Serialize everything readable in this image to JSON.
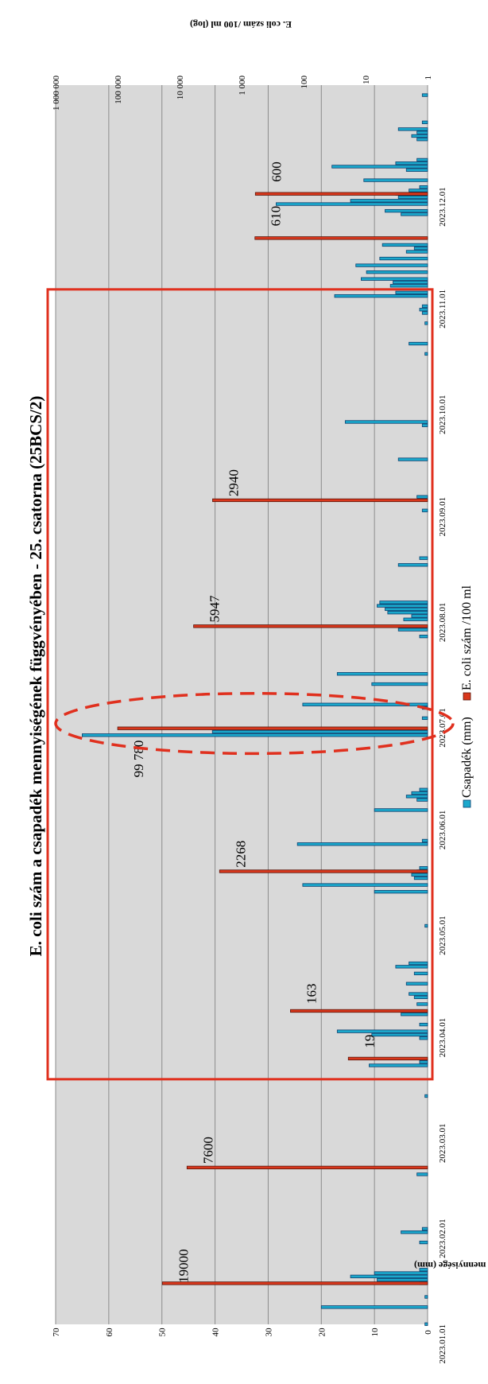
{
  "chart_data": {
    "type": "bar",
    "title": "E. coli szám a csapadék mennyiségének függvényében - 25. csatorna (25BCS/2)",
    "left_axis": {
      "label": "Csapadék mennyisége (mm)",
      "ticks": [
        "0",
        "10",
        "20",
        "30",
        "40",
        "50",
        "60",
        "70"
      ],
      "range": [
        0,
        70
      ]
    },
    "right_axis": {
      "label": "E. coli szám /100 ml (log)",
      "scale": "log",
      "ticks": [
        "1",
        "10",
        "100",
        "1 000",
        "10 000",
        "100 000",
        "1 000 000"
      ],
      "range": [
        1,
        1000000
      ]
    },
    "date_axis": {
      "range": [
        "2023-01-01",
        "2023-12-31"
      ],
      "tick_labels": [
        "2023.01.01",
        "2023.02.01",
        "2023.03.01",
        "2023.04.01",
        "2023.05.01",
        "2023.06.01",
        "2023.07.01",
        "2023.08.01",
        "2023.09.01",
        "2023.10.01",
        "2023.11.01",
        "2023.12.01"
      ],
      "tick_dates": [
        "2023-01-01",
        "2023-02-01",
        "2023-03-01",
        "2023-04-01",
        "2023-05-01",
        "2023-06-01",
        "2023-07-01",
        "2023-08-01",
        "2023-09-01",
        "2023-10-01",
        "2023-11-01",
        "2023-12-01"
      ]
    },
    "grid": true,
    "legend": {
      "position": "bottom",
      "items": [
        "Csapadék (mm)",
        "E. coli szám /100 ml"
      ]
    },
    "series": [
      {
        "name": "Csapadék (mm)",
        "color": "#1ba8cc",
        "axis": "left",
        "points": [
          [
            "2023-01-01",
            0.5
          ],
          [
            "2023-01-06",
            20
          ],
          [
            "2023-01-09",
            0.5
          ],
          [
            "2023-01-13",
            1.5
          ],
          [
            "2023-01-14",
            9.5
          ],
          [
            "2023-01-15",
            14.5
          ],
          [
            "2023-01-16",
            10
          ],
          [
            "2023-01-17",
            1.5
          ],
          [
            "2023-01-25",
            1.5
          ],
          [
            "2023-01-28",
            5
          ],
          [
            "2023-01-29",
            1
          ],
          [
            "2023-02-14",
            2
          ],
          [
            "2023-03-09",
            0.5
          ],
          [
            "2023-03-18",
            11
          ],
          [
            "2023-03-19",
            1.5
          ],
          [
            "2023-03-26",
            1.5
          ],
          [
            "2023-03-27",
            10.5
          ],
          [
            "2023-03-28",
            17
          ],
          [
            "2023-03-30",
            1.5
          ],
          [
            "2023-04-02",
            5
          ],
          [
            "2023-04-05",
            2
          ],
          [
            "2023-04-07",
            2.5
          ],
          [
            "2023-04-08",
            3.5
          ],
          [
            "2023-04-11",
            4
          ],
          [
            "2023-04-14",
            2.5
          ],
          [
            "2023-04-16",
            6
          ],
          [
            "2023-04-17",
            3.5
          ],
          [
            "2023-04-28",
            0.5
          ],
          [
            "2023-05-08",
            10
          ],
          [
            "2023-05-10",
            23.5
          ],
          [
            "2023-05-12",
            2.5
          ],
          [
            "2023-05-13",
            3
          ],
          [
            "2023-05-14",
            2
          ],
          [
            "2023-05-15",
            1.5
          ],
          [
            "2023-05-22",
            24.5
          ],
          [
            "2023-05-23",
            1
          ],
          [
            "2023-06-01",
            10
          ],
          [
            "2023-06-04",
            2
          ],
          [
            "2023-06-05",
            4
          ],
          [
            "2023-06-06",
            3
          ],
          [
            "2023-06-07",
            1.5
          ],
          [
            "2023-06-23",
            65
          ],
          [
            "2023-06-24",
            40.5
          ],
          [
            "2023-06-28",
            1
          ],
          [
            "2023-07-01",
            1
          ],
          [
            "2023-07-02",
            23.5
          ],
          [
            "2023-07-08",
            10.5
          ],
          [
            "2023-07-11",
            17
          ],
          [
            "2023-07-22",
            1.5
          ],
          [
            "2023-07-24",
            5.5
          ],
          [
            "2023-07-27",
            4.5
          ],
          [
            "2023-07-28",
            3
          ],
          [
            "2023-07-29",
            7.5
          ],
          [
            "2023-07-30",
            8
          ],
          [
            "2023-07-31",
            9.5
          ],
          [
            "2023-08-01",
            9
          ],
          [
            "2023-08-12",
            5.5
          ],
          [
            "2023-08-14",
            1.5
          ],
          [
            "2023-08-28",
            1
          ],
          [
            "2023-09-01",
            2
          ],
          [
            "2023-09-12",
            5.5
          ],
          [
            "2023-09-22",
            1
          ],
          [
            "2023-09-23",
            15.5
          ],
          [
            "2023-10-13",
            0.5
          ],
          [
            "2023-10-16",
            3.5
          ],
          [
            "2023-10-22",
            0.5
          ],
          [
            "2023-10-25",
            1
          ],
          [
            "2023-10-26",
            1.5
          ],
          [
            "2023-10-27",
            1
          ],
          [
            "2023-10-30",
            17.5
          ],
          [
            "2023-10-31",
            6
          ],
          [
            "2023-11-02",
            7
          ],
          [
            "2023-11-03",
            6.5
          ],
          [
            "2023-11-04",
            12.5
          ],
          [
            "2023-11-06",
            11.5
          ],
          [
            "2023-11-08",
            13.5
          ],
          [
            "2023-11-10",
            9
          ],
          [
            "2023-11-12",
            4
          ],
          [
            "2023-11-13",
            2.5
          ],
          [
            "2023-11-14",
            8.5
          ],
          [
            "2023-11-23",
            5
          ],
          [
            "2023-11-24",
            8
          ],
          [
            "2023-11-26",
            28.5
          ],
          [
            "2023-11-27",
            14.5
          ],
          [
            "2023-11-28",
            5.5
          ],
          [
            "2023-11-29",
            6
          ],
          [
            "2023-11-30",
            3.5
          ],
          [
            "2023-12-01",
            1.5
          ],
          [
            "2023-12-03",
            12
          ],
          [
            "2023-12-06",
            4
          ],
          [
            "2023-12-07",
            18
          ],
          [
            "2023-12-08",
            6
          ],
          [
            "2023-12-09",
            2
          ],
          [
            "2023-12-15",
            2
          ],
          [
            "2023-12-16",
            3
          ],
          [
            "2023-12-17",
            2
          ],
          [
            "2023-12-18",
            5.5
          ],
          [
            "2023-12-20",
            1
          ],
          [
            "2023-12-28",
            1
          ]
        ]
      },
      {
        "name": "E. coli szám /100 ml",
        "color": "#d9371c",
        "axis": "right",
        "points": [
          [
            "2023-01-13",
            19000
          ],
          [
            "2023-02-16",
            7600
          ],
          [
            "2023-03-20",
            19
          ],
          [
            "2023-04-03",
            163
          ],
          [
            "2023-05-14",
            2268
          ],
          [
            "2023-06-25",
            99780
          ],
          [
            "2023-07-25",
            5947
          ],
          [
            "2023-08-31",
            2940
          ],
          [
            "2023-11-16",
            610
          ],
          [
            "2023-11-29",
            600
          ]
        ]
      }
    ],
    "annotations": [
      "19000",
      "7600",
      "19",
      "163",
      "2268",
      "99 780",
      "5947",
      "2940",
      "610",
      "600"
    ],
    "highlights": {
      "box_dates": [
        "2023-03-14",
        "2023-11-01"
      ],
      "ellipse_dates": [
        "2023-06-20",
        "2023-07-03"
      ]
    }
  }
}
